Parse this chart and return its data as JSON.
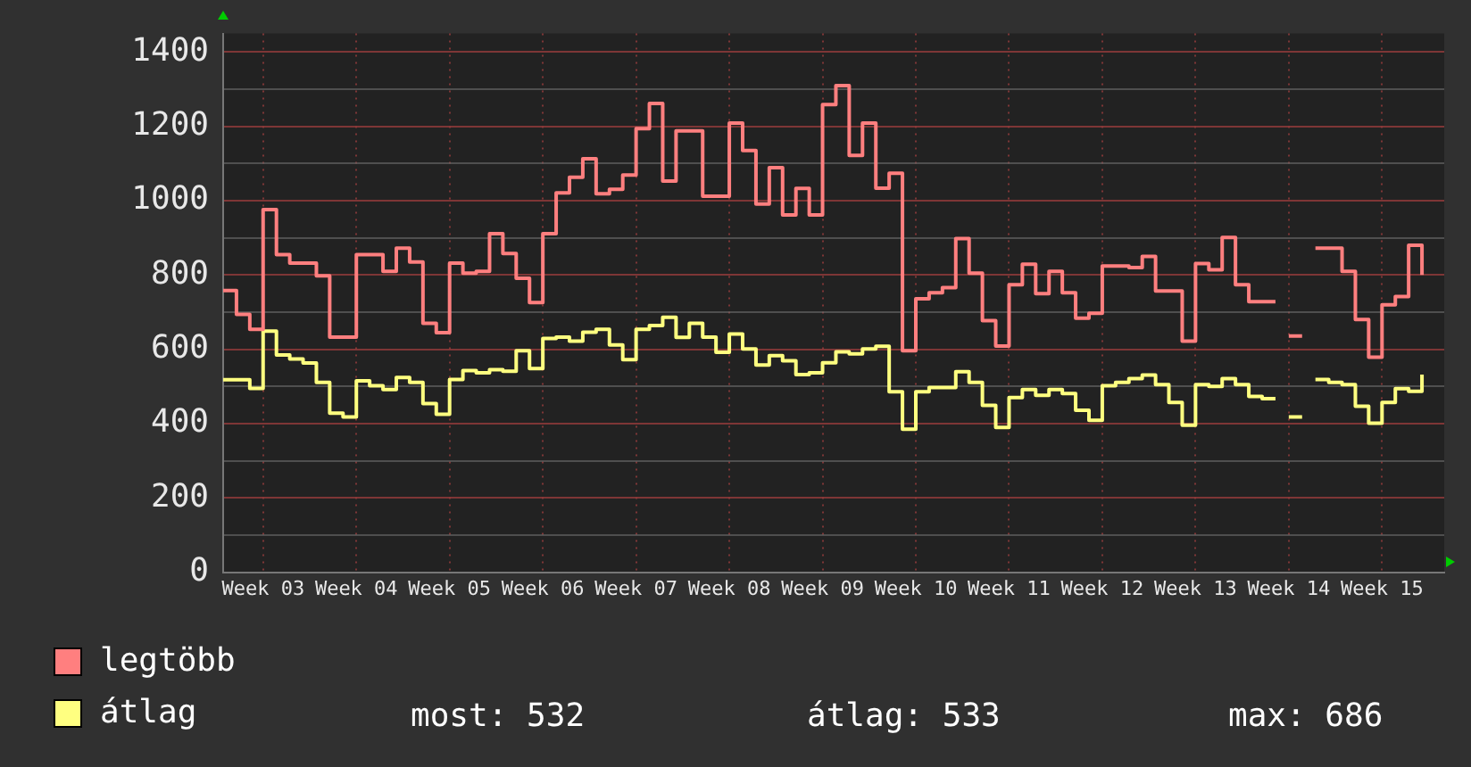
{
  "chart_data": {
    "type": "step",
    "categories": [
      null,
      null,
      null,
      "Week 03",
      null,
      null,
      null,
      null,
      null,
      null,
      "Week 04",
      null,
      null,
      null,
      null,
      null,
      null,
      "Week 05",
      null,
      null,
      null,
      null,
      null,
      null,
      "Week 06",
      null,
      null,
      null,
      null,
      null,
      null,
      "Week 07",
      null,
      null,
      null,
      null,
      null,
      null,
      "Week 08",
      null,
      null,
      null,
      null,
      null,
      null,
      "Week 09",
      null,
      null,
      null,
      null,
      null,
      null,
      "Week 10",
      null,
      null,
      null,
      null,
      null,
      null,
      "Week 11",
      null,
      null,
      null,
      null,
      null,
      null,
      "Week 12",
      null,
      null,
      null,
      null,
      null,
      null,
      "Week 13",
      null,
      null,
      null,
      null,
      null,
      null,
      "Week 14",
      null,
      null,
      null,
      null,
      null,
      null,
      "Week 15",
      null,
      null,
      null
    ],
    "series": [
      {
        "name": "legtöbb",
        "color": "#ff7f7f",
        "values": [
          758,
          694,
          654,
          976,
          855,
          832,
          832,
          798,
          633,
          633,
          855,
          855,
          810,
          872,
          835,
          670,
          645,
          832,
          805,
          810,
          911,
          858,
          791,
          726,
          911,
          1021,
          1063,
          1113,
          1019,
          1031,
          1069,
          1194,
          1262,
          1053,
          1188,
          1188,
          1012,
          1012,
          1209,
          1135,
          991,
          1089,
          962,
          1033,
          962,
          1259,
          1310,
          1122,
          1209,
          1034,
          1074,
          596,
          736,
          752,
          766,
          898,
          805,
          677,
          609,
          774,
          829,
          750,
          810,
          752,
          684,
          697,
          824,
          824,
          820,
          850,
          757,
          757,
          622,
          831,
          814,
          901,
          774,
          728,
          728,
          null,
          636,
          null,
          872,
          872,
          810,
          680,
          579,
          720,
          742,
          880,
          800
        ]
      },
      {
        "name": "átlag",
        "color": "#ffff80",
        "values": [
          518,
          518,
          495,
          649,
          585,
          574,
          563,
          511,
          428,
          418,
          515,
          502,
          492,
          524,
          511,
          454,
          425,
          519,
          543,
          537,
          545,
          541,
          596,
          548,
          629,
          633,
          622,
          646,
          654,
          612,
          572,
          654,
          664,
          686,
          632,
          670,
          633,
          592,
          641,
          601,
          558,
          583,
          569,
          532,
          537,
          564,
          593,
          588,
          601,
          608,
          486,
          385,
          486,
          497,
          497,
          540,
          511,
          449,
          390,
          470,
          492,
          476,
          492,
          481,
          436,
          409,
          502,
          511,
          521,
          531,
          505,
          457,
          396,
          505,
          500,
          521,
          505,
          473,
          467,
          null,
          418,
          null,
          519,
          511,
          505,
          447,
          401,
          457,
          494,
          487,
          532
        ]
      }
    ],
    "ylim": [
      0,
      1450
    ],
    "yticks": [
      0,
      {
        "value": 100,
        "label": null
      },
      200,
      {
        "value": 300,
        "label": null
      },
      400,
      {
        "value": 500,
        "label": null
      },
      600,
      {
        "value": 700,
        "label": null
      },
      800,
      {
        "value": 900,
        "label": null
      },
      1000,
      {
        "value": 1100,
        "label": null
      },
      1200,
      {
        "value": 1300,
        "label": null
      },
      1400
    ],
    "grid": true,
    "legend": "bottom",
    "annotations": [
      "most: 532",
      "átlag: 533",
      "max: 686"
    ]
  }
}
